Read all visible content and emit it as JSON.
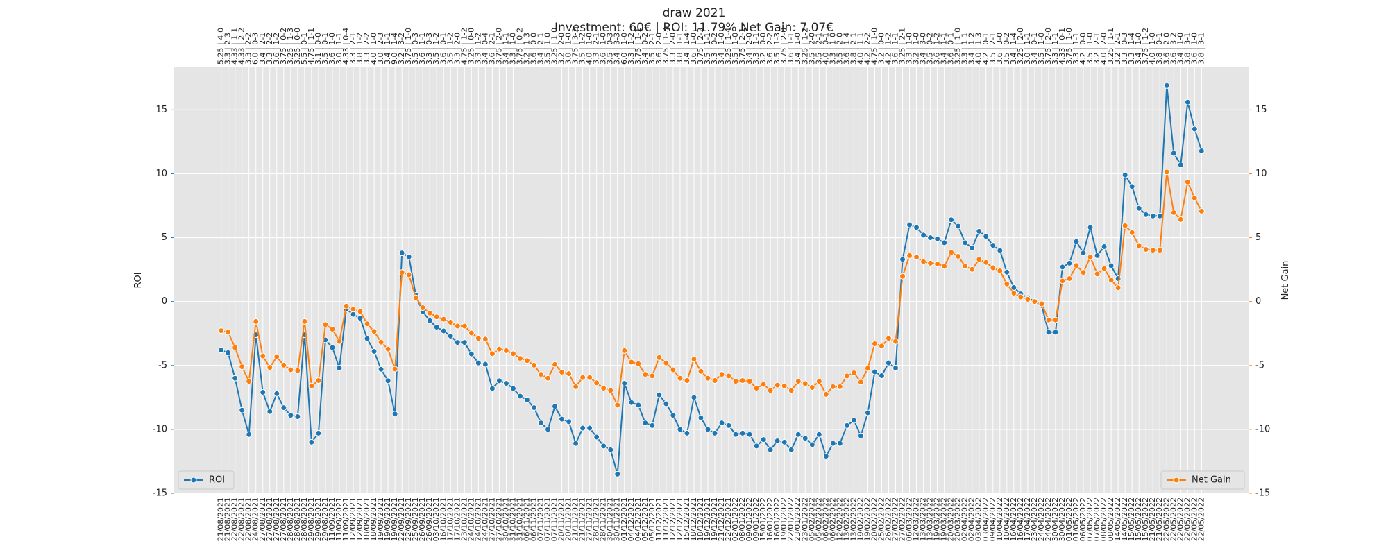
{
  "chart_data": {
    "type": "line",
    "title": "draw 2021",
    "subtitle": "Investment: 60€ | ROI: 11.79% Net Gain: 7.07€",
    "ylabel": "ROI",
    "y2label": "Net Gain",
    "grid": true,
    "ylim": [
      -15,
      18.33
    ],
    "yticks": [
      -15,
      -10,
      -5,
      0,
      5,
      10,
      15
    ],
    "y2lim": [
      -15,
      18.33
    ],
    "y2ticks": [
      -15,
      -10,
      -5,
      0,
      5,
      10,
      15
    ],
    "categories": [
      "21/08/2021",
      "21/08/2021",
      "22/08/2021",
      "22/08/2021",
      "22/08/2021",
      "24/08/2021",
      "27/08/2021",
      "27/08/2021",
      "27/08/2021",
      "27/08/2021",
      "28/08/2021",
      "28/08/2021",
      "28/08/2021",
      "29/08/2021",
      "29/08/2021",
      "29/08/2021",
      "11/09/2021",
      "11/09/2021",
      "11/09/2021",
      "12/09/2021",
      "12/09/2021",
      "18/09/2021",
      "18/09/2021",
      "19/09/2021",
      "19/09/2021",
      "19/09/2021",
      "22/09/2021",
      "22/09/2021",
      "25/09/2021",
      "26/09/2021",
      "26/09/2021",
      "03/10/2021",
      "16/10/2021",
      "17/10/2021",
      "17/10/2021",
      "23/10/2021",
      "24/10/2021",
      "24/10/2021",
      "24/10/2021",
      "27/10/2021",
      "27/10/2021",
      "30/10/2021",
      "31/10/2021",
      "31/10/2021",
      "06/11/2021",
      "06/11/2021",
      "07/11/2021",
      "07/11/2021",
      "07/11/2021",
      "20/11/2021",
      "20/11/2021",
      "21/11/2021",
      "21/11/2021",
      "27/11/2021",
      "28/11/2021",
      "28/11/2021",
      "30/11/2021",
      "30/11/2021",
      "01/12/2021",
      "04/12/2021",
      "04/12/2021",
      "05/12/2021",
      "05/12/2021",
      "11/12/2021",
      "11/12/2021",
      "12/12/2021",
      "12/12/2021",
      "15/12/2021",
      "18/12/2021",
      "18/12/2021",
      "19/12/2021",
      "19/12/2021",
      "21/12/2021",
      "22/12/2021",
      "02/01/2022",
      "08/01/2022",
      "09/01/2022",
      "09/01/2022",
      "15/01/2022",
      "16/01/2022",
      "16/01/2022",
      "19/01/2022",
      "22/01/2022",
      "23/01/2022",
      "23/01/2022",
      "05/02/2022",
      "05/02/2022",
      "06/02/2022",
      "06/02/2022",
      "12/02/2022",
      "13/02/2022",
      "13/02/2022",
      "19/02/2022",
      "19/02/2022",
      "20/02/2022",
      "25/02/2022",
      "26/02/2022",
      "27/02/2022",
      "27/02/2022",
      "06/03/2022",
      "12/03/2022",
      "13/03/2022",
      "13/03/2022",
      "19/03/2022",
      "19/03/2022",
      "20/03/2022",
      "20/03/2022",
      "02/04/2022",
      "02/04/2022",
      "03/04/2022",
      "03/04/2022",
      "09/04/2022",
      "10/04/2022",
      "10/04/2022",
      "16/04/2022",
      "16/04/2022",
      "17/04/2022",
      "23/04/2022",
      "24/04/2022",
      "24/04/2022",
      "30/04/2022",
      "30/04/2022",
      "01/05/2022",
      "01/05/2022",
      "06/05/2022",
      "07/05/2022",
      "07/05/2022",
      "08/05/2022",
      "08/05/2022",
      "14/05/2022",
      "14/05/2022",
      "15/05/2022",
      "15/05/2022",
      "15/05/2022",
      "21/05/2022",
      "21/05/2022",
      "22/05/2022",
      "22/05/2022",
      "22/05/2022",
      "22/05/2022",
      "22/05/2022",
      "22/05/2022"
    ],
    "top_labels": [
      "5.25 | 4-0",
      "3.3 | 2-3",
      "4.33 | 1-1",
      "4.33 | 2-2",
      "3.3 | 2-2",
      "6.0 | 0-3",
      "3.4 | 2-1",
      "3.3 | 2-2",
      "3.6 | 1-2",
      "3.75 | 0-2",
      "3.25 | 1-3",
      "3.25 | 0-0",
      "5.5 | 0-1",
      "4.75 | 1-1",
      "3.1 | 0-0",
      "3.5 | 0-1",
      "3.6 | 1-0",
      "3.0 | 1-1",
      "4.33 | 0-4",
      "3.3 | 2-1",
      "3.8 | 1-2",
      "3.3 | 2-2",
      "4.0 | 1-0",
      "3.0 | 2-3",
      "3.4 | 1-1",
      "9.0 | 1-4",
      "3.2 | 3-2",
      "3.75 | 1-0",
      "3.5 | 0-3",
      "3.6 | 1-1",
      "3.3 | 0-3",
      "3.5 | 1-2",
      "3.6 | 0-1",
      "3.5 | 1-2",
      "3.3 | 2-0",
      "4.75 | 1-2",
      "3.25 | 0-0",
      "3.3 | 1-2",
      "3.4 | 0-4",
      "3.6 | 2-1",
      "3.75 | 2-0",
      "3.4 | 1-1",
      "3.3 | 1-0",
      "3.75 | 0-2",
      "3.2 | 1-3",
      "3.6 | 0-0",
      "3.4 | 2-1",
      "3.5 | 1-0",
      "3.25 | 1-0",
      "3.2 | 2-0",
      "3.0 | 1-0",
      "3.75 | 3-2",
      "3.5 | 1-2",
      "4.0 | 1-0",
      "3.3 | 2-1",
      "3.6 | 1-0",
      "3.5 | 0-3",
      "3.4 | 3-3",
      "6.0 | 1-0",
      "3.3 | 1-2",
      "3.75 | 1-1",
      "3.4 | 0-2",
      "3.5 | 2-1",
      "3.6 | 2-0",
      "3.75 | 1-3",
      "3.3 | 2-0",
      "3.8 | 1-1",
      "3.4 | 1-4",
      "3.6 | 1-0",
      "3.75 | 2-3",
      "3.5 | 1-1",
      "3.3 | 0-2",
      "3.4 | 1-0",
      "3.25 | 1-4",
      "3.5 | 1-0",
      "3.75 | 2-1",
      "3.4 | 2-0",
      "3.3 | 1-1",
      "3.2 | 0-0",
      "3.6 | 2-2",
      "3.5 | 1-3",
      "3.75 | 2-0",
      "3.6 | 1-1",
      "3.4 | 1-0",
      "3.25 | 1-2",
      "3.5 | 2-0",
      "3.5 | 2-1",
      "4.0 | 0-1",
      "3.3 | 1-0",
      "3.5 | 2-0",
      "3.6 | 1-4",
      "3.8 | 2-1",
      "4.0 | 1-1",
      "4.2 | 2-2",
      "4.75 | 1-0",
      "3.2 | 0-0",
      "4.2 | 1-2",
      "3.6 | 1-1",
      "3.25 | 2-1",
      "3.3 | 1-0",
      "3.2 | 1-0",
      "3.4 | 3-0",
      "3.5 | 0-2",
      "3.6 | 1-2",
      "3.4 | 1-1",
      "3.6 | 0-1",
      "3.25 | 1-0",
      "3.3 | 1-1",
      "3.4 | 1-2",
      "4.0 | 1-3",
      "4.2 | 0-1",
      "3.5 | 2-1",
      "3.6 | 3-0",
      "3.5 | 0-2",
      "3.4 | 1-4",
      "3.25 | 2-0",
      "3.0 | 1-1",
      "3.4 | 0-1",
      "3.5 | 1-0",
      "3.75 | 2-0",
      "3.3 | 1-1",
      "4.33 | 0-1",
      "3.75 | 1-0",
      "3.3 | 1-1",
      "4.2 | 0-0",
      "3.5 | 1-0",
      "3.2 | 2-1",
      "4.0 | 2-0",
      "3.25 | 1-1",
      "3.2 | 2-1",
      "3.3 | 0-3",
      "3.3 | 1-4",
      "3.4 | 1-0",
      "3.75 | 1-2",
      "4.0 | 1-0",
      "3.8 | 0-1",
      "3.6 | 2-0",
      "3.6 | 3-2",
      "3.4 | 1-0",
      "3.8 | 3-1",
      "3.6 | 1-0",
      "3.8 | 3-1"
    ],
    "series": [
      {
        "name": "ROI",
        "color": "#1f77b4",
        "legend": "lower left",
        "values": [
          -3.8,
          -4.0,
          -6.0,
          -8.5,
          -10.4,
          -2.6,
          -7.1,
          -8.6,
          -7.2,
          -8.3,
          -8.9,
          -9.0,
          -2.6,
          -11.0,
          -10.3,
          -3.0,
          -3.6,
          -5.2,
          -0.6,
          -1.0,
          -1.3,
          -2.9,
          -3.9,
          -5.3,
          -6.2,
          -8.8,
          3.8,
          3.5,
          0.5,
          -0.8,
          -1.5,
          -2.0,
          -2.3,
          -2.7,
          -3.2,
          -3.2,
          -4.1,
          -4.8,
          -4.9,
          -6.8,
          -6.2,
          -6.4,
          -6.8,
          -7.4,
          -7.7,
          -8.3,
          -9.5,
          -10.0,
          -8.2,
          -9.2,
          -9.4,
          -11.1,
          -9.9,
          -9.9,
          -10.6,
          -11.3,
          -11.6,
          -13.5,
          -6.4,
          -7.9,
          -8.1,
          -9.5,
          -9.7,
          -7.3,
          -8.0,
          -8.9,
          -10.0,
          -10.3,
          -7.5,
          -9.1,
          -10.0,
          -10.3,
          -9.5,
          -9.7,
          -10.4,
          -10.3,
          -10.4,
          -11.3,
          -10.8,
          -11.6,
          -10.9,
          -11.0,
          -11.6,
          -10.4,
          -10.7,
          -11.2,
          -10.4,
          -12.1,
          -11.1,
          -11.1,
          -9.7,
          -9.3,
          -10.5,
          -8.7,
          -5.5,
          -5.8,
          -4.8,
          -5.2,
          3.3,
          6.0,
          5.8,
          5.2,
          5.0,
          4.9,
          4.6,
          6.4,
          5.9,
          4.6,
          4.2,
          5.5,
          5.1,
          4.4,
          4.0,
          2.3,
          1.1,
          0.6,
          0.3,
          0.0,
          -0.3,
          -2.4,
          -2.4,
          2.7,
          3.0,
          4.7,
          3.8,
          5.8,
          3.6,
          4.3,
          2.8,
          1.8,
          9.9,
          9.0,
          7.3,
          6.8,
          6.7,
          6.7,
          16.9,
          11.6,
          10.7,
          15.6,
          13.5,
          11.79
        ]
      },
      {
        "name": "Net Gain",
        "color": "#ff7f0e",
        "axis": "y2",
        "legend": "lower right",
        "values": [
          -2.28,
          -2.4,
          -3.6,
          -5.1,
          -6.24,
          -1.56,
          -4.26,
          -5.16,
          -4.32,
          -4.98,
          -5.34,
          -5.4,
          -1.56,
          -6.6,
          -6.18,
          -1.8,
          -2.16,
          -3.12,
          -0.36,
          -0.6,
          -0.78,
          -1.74,
          -2.34,
          -3.18,
          -3.72,
          -5.28,
          2.28,
          2.1,
          0.3,
          -0.48,
          -0.9,
          -1.2,
          -1.38,
          -1.62,
          -1.92,
          -1.92,
          -2.46,
          -2.88,
          -2.94,
          -4.08,
          -3.72,
          -3.84,
          -4.08,
          -4.44,
          -4.62,
          -4.98,
          -5.7,
          -6.0,
          -4.92,
          -5.52,
          -5.64,
          -6.66,
          -5.94,
          -5.94,
          -6.36,
          -6.78,
          -6.96,
          -8.1,
          -3.84,
          -4.74,
          -4.86,
          -5.7,
          -5.82,
          -4.38,
          -4.8,
          -5.34,
          -6.0,
          -6.18,
          -4.5,
          -5.46,
          -6.0,
          -6.18,
          -5.7,
          -5.82,
          -6.24,
          -6.18,
          -6.24,
          -6.78,
          -6.48,
          -6.96,
          -6.54,
          -6.6,
          -6.96,
          -6.24,
          -6.42,
          -6.72,
          -6.24,
          -7.26,
          -6.66,
          -6.66,
          -5.82,
          -5.58,
          -6.3,
          -5.22,
          -3.3,
          -3.48,
          -2.88,
          -3.12,
          1.98,
          3.6,
          3.48,
          3.12,
          3.0,
          2.94,
          2.76,
          3.84,
          3.54,
          2.76,
          2.52,
          3.3,
          3.06,
          2.64,
          2.4,
          1.38,
          0.66,
          0.36,
          0.18,
          0.0,
          -0.18,
          -1.44,
          -1.44,
          1.62,
          1.8,
          2.82,
          2.28,
          3.48,
          2.16,
          2.58,
          1.68,
          1.08,
          5.94,
          5.4,
          4.38,
          4.08,
          4.02,
          4.02,
          10.14,
          6.96,
          6.42,
          9.36,
          8.1,
          7.07
        ]
      }
    ]
  }
}
